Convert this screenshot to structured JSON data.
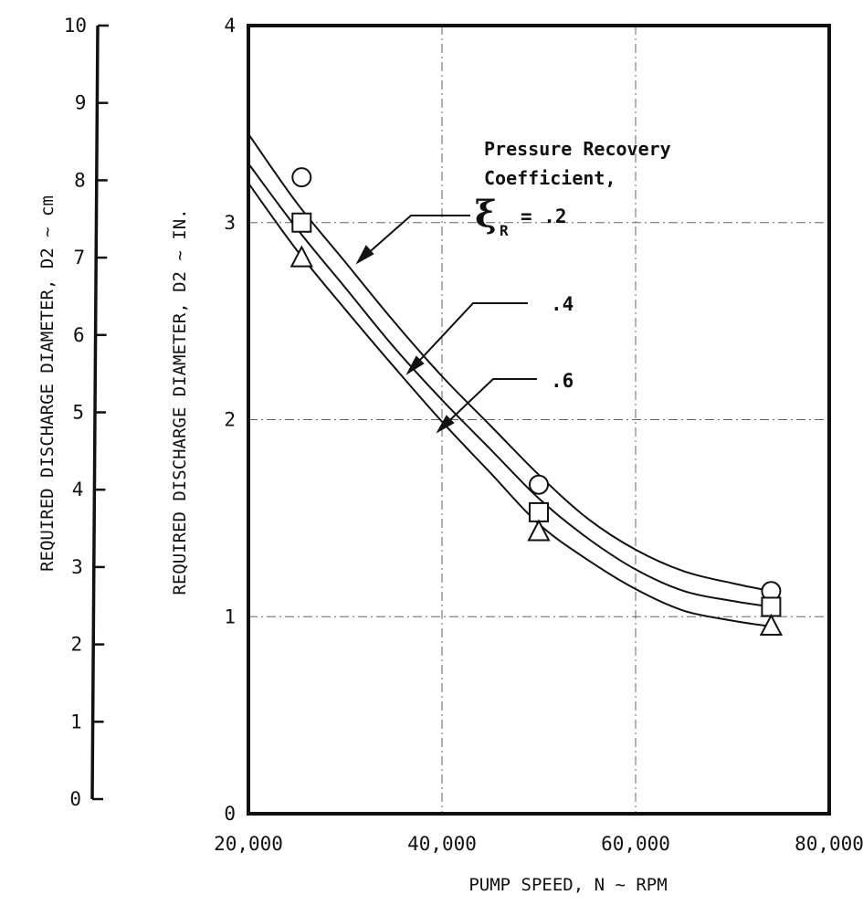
{
  "chart_data": {
    "type": "line",
    "x_axis": {
      "label": "PUMP SPEED, N ~ RPM",
      "range": [
        20000,
        80000
      ],
      "ticks": [
        20000,
        40000,
        60000,
        80000
      ],
      "tick_labels": [
        "20,000",
        "40,000",
        "60,000",
        "80,000"
      ]
    },
    "y_axis": {
      "label": "REQUIRED DISCHARGE DIAMETER, D2 ~ IN.",
      "range": [
        0,
        4
      ],
      "ticks": [
        0,
        1,
        2,
        3,
        4
      ],
      "tick_labels": [
        "0",
        "1",
        "2",
        "3",
        "4"
      ]
    },
    "y_axis_secondary": {
      "label": "REQUIRED DISCHARGE DIAMETER, D2 ~ cm",
      "range": [
        0,
        10
      ],
      "ticks": [
        0,
        1,
        2,
        3,
        4,
        5,
        6,
        7,
        8,
        9,
        10
      ],
      "tick_labels": [
        "0",
        "1",
        "2",
        "3",
        "4",
        "5",
        "6",
        "7",
        "8",
        "9",
        "10"
      ]
    },
    "legend": {
      "title_lines": [
        "Pressure Recovery",
        "Coefficient,"
      ],
      "symbol": "ξ",
      "symbol_subscript": "R"
    },
    "series": [
      {
        "name": ".2",
        "label": "= .2",
        "marker": "circle",
        "x": [
          20000,
          25000,
          30000,
          35000,
          40000,
          45000,
          50000,
          55000,
          60000,
          65000,
          70000,
          74000
        ],
        "y": [
          3.45,
          3.1,
          2.8,
          2.5,
          2.22,
          1.97,
          1.72,
          1.5,
          1.34,
          1.23,
          1.17,
          1.13
        ],
        "marker_points": [
          [
            25500,
            3.23
          ],
          [
            50000,
            1.67
          ],
          [
            74000,
            1.13
          ]
        ]
      },
      {
        "name": ".4",
        "label": ".4",
        "marker": "square",
        "x": [
          20000,
          25000,
          30000,
          35000,
          40000,
          45000,
          50000,
          55000,
          60000,
          65000,
          70000,
          74000
        ],
        "y": [
          3.3,
          2.97,
          2.67,
          2.37,
          2.1,
          1.85,
          1.6,
          1.4,
          1.24,
          1.13,
          1.08,
          1.05
        ],
        "marker_points": [
          [
            25500,
            3.0
          ],
          [
            50000,
            1.53
          ],
          [
            74000,
            1.05
          ]
        ]
      },
      {
        "name": ".6",
        "label": ".6",
        "marker": "triangle",
        "x": [
          20000,
          25000,
          30000,
          35000,
          40000,
          45000,
          50000,
          55000,
          60000,
          65000,
          70000,
          74000
        ],
        "y": [
          3.2,
          2.86,
          2.56,
          2.27,
          1.99,
          1.73,
          1.47,
          1.29,
          1.14,
          1.03,
          0.98,
          0.95
        ],
        "marker_points": [
          [
            25500,
            2.82
          ],
          [
            50000,
            1.43
          ],
          [
            74000,
            0.95
          ]
        ]
      }
    ],
    "grid": "dash-dot at x=40000,60000 and y=1,2,3"
  }
}
